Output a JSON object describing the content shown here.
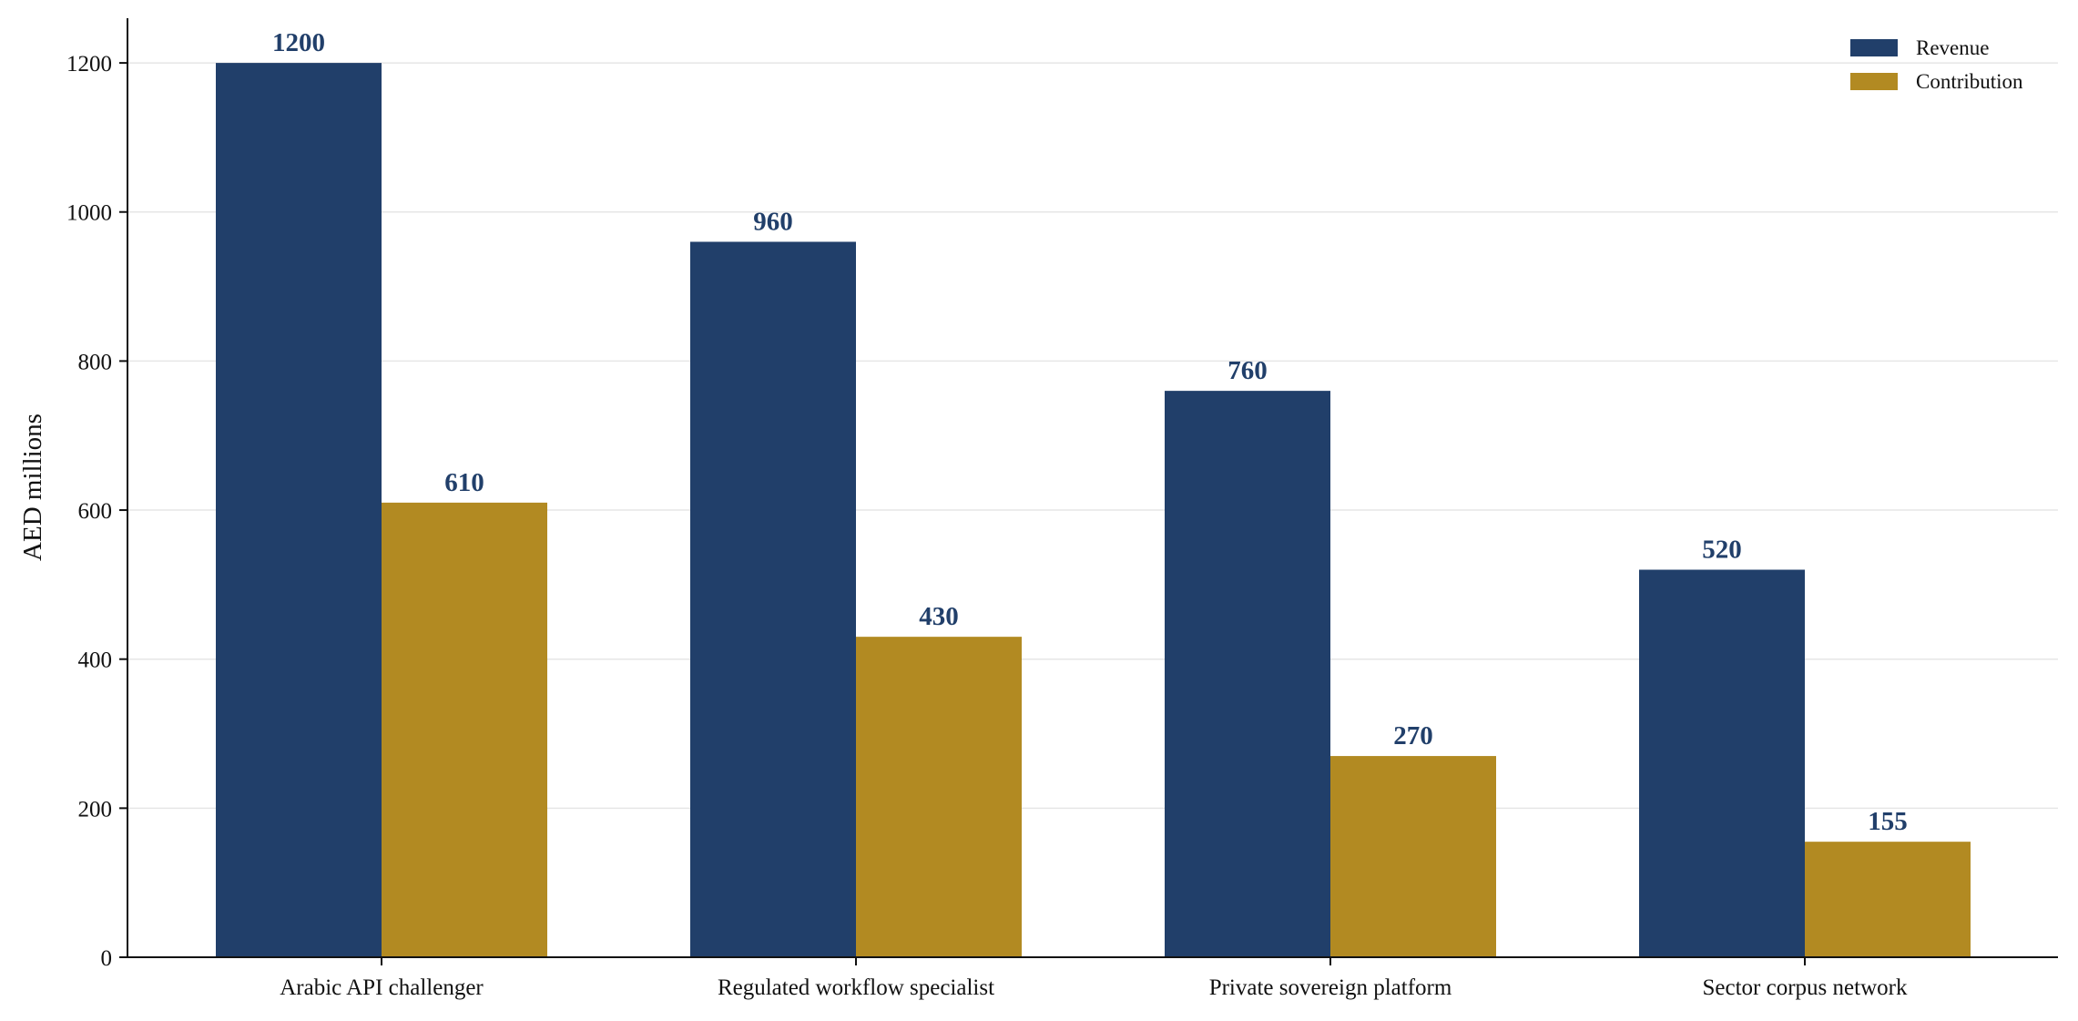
{
  "chart_data": {
    "type": "bar",
    "title": "",
    "xlabel": "",
    "ylabel": "AED millions",
    "categories": [
      "Arabic API challenger",
      "Regulated workflow specialist",
      "Private sovereign platform",
      "Sector corpus network"
    ],
    "series": [
      {
        "name": "Revenue",
        "color": "#213f6a",
        "values": [
          1200,
          960,
          760,
          520
        ]
      },
      {
        "name": "Contribution",
        "color": "#b28a22",
        "values": [
          610,
          430,
          270,
          155
        ]
      }
    ],
    "ylim": [
      0,
      1260
    ],
    "yticks": [
      0,
      200,
      400,
      600,
      800,
      1000,
      1200
    ],
    "grid": true,
    "legend": "top-right",
    "data_labels": true
  }
}
